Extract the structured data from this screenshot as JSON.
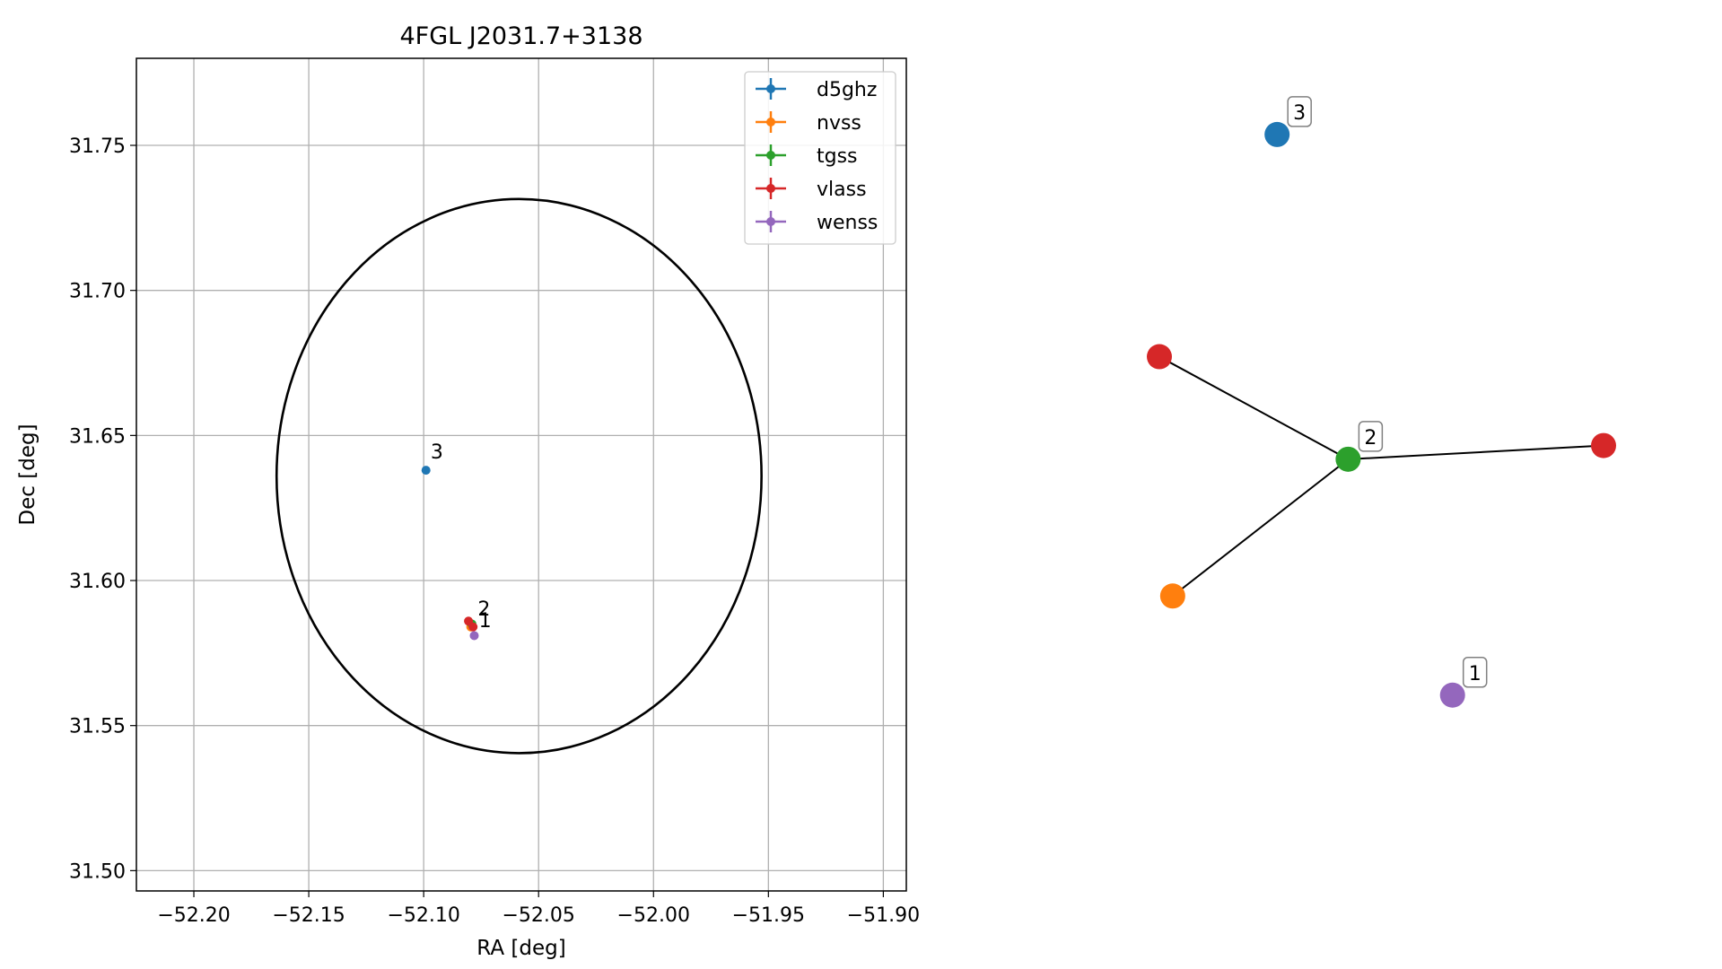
{
  "chart_data": [
    {
      "type": "scatter",
      "title": "4FGL J2031.7+3138",
      "xlabel": "RA [deg]",
      "ylabel": "Dec [deg]",
      "xlim": [
        -52.225,
        -51.89
      ],
      "ylim": [
        31.493,
        31.78
      ],
      "xticks": [
        -52.2,
        -52.15,
        -52.1,
        -52.05,
        -52.0,
        -51.95,
        -51.9
      ],
      "xtick_labels": [
        "−52.20",
        "−52.15",
        "−52.10",
        "−52.05",
        "−52.00",
        "−51.95",
        "−51.90"
      ],
      "yticks": [
        31.5,
        31.55,
        31.6,
        31.65,
        31.7,
        31.75
      ],
      "ytick_labels": [
        "31.50",
        "31.55",
        "31.60",
        "31.65",
        "31.70",
        "31.75"
      ],
      "grid": true,
      "legend_position": "top-right",
      "series": [
        {
          "name": "d5ghz",
          "color": "#1f77b4",
          "points": [
            {
              "x": -52.099,
              "y": 31.638
            }
          ]
        },
        {
          "name": "nvss",
          "color": "#ff7f0e",
          "points": [
            {
              "x": -52.0795,
              "y": 31.584
            }
          ]
        },
        {
          "name": "tgss",
          "color": "#2ca02c",
          "points": [
            {
              "x": -52.079,
              "y": 31.585
            }
          ]
        },
        {
          "name": "vlass",
          "color": "#d62728",
          "points": [
            {
              "x": -52.0805,
              "y": 31.586
            },
            {
              "x": -52.0785,
              "y": 31.584
            }
          ]
        },
        {
          "name": "wenss",
          "color": "#9467bd",
          "points": [
            {
              "x": -52.078,
              "y": 31.581
            }
          ]
        }
      ],
      "ellipse": {
        "center_x": -52.0585,
        "center_y": 31.636,
        "semi_x": 0.1055,
        "semi_y": 0.0955,
        "color": "#000000"
      },
      "annotations": [
        {
          "text": "3",
          "x": -52.097,
          "y": 31.642
        },
        {
          "text": "2",
          "x": -52.0765,
          "y": 31.588
        },
        {
          "text": "1",
          "x": -52.076,
          "y": 31.584
        }
      ]
    },
    {
      "type": "network",
      "nodes": [
        {
          "id": "n-blue",
          "color": "#1f77b4",
          "label": "3",
          "x": 0.265,
          "y": 0.945
        },
        {
          "id": "n-red-left",
          "color": "#d62728",
          "label": "",
          "x": 0.0,
          "y": 0.62
        },
        {
          "id": "n-green",
          "color": "#2ca02c",
          "label": "2",
          "x": 0.425,
          "y": 0.47
        },
        {
          "id": "n-red-right",
          "color": "#d62728",
          "label": "",
          "x": 1.0,
          "y": 0.49
        },
        {
          "id": "n-orange",
          "color": "#ff7f0e",
          "label": "",
          "x": 0.03,
          "y": 0.27
        },
        {
          "id": "n-purple",
          "color": "#9467bd",
          "label": "1",
          "x": 0.66,
          "y": 0.125
        }
      ],
      "edges": [
        [
          "n-red-left",
          "n-green"
        ],
        [
          "n-green",
          "n-red-right"
        ],
        [
          "n-green",
          "n-orange"
        ]
      ]
    }
  ]
}
